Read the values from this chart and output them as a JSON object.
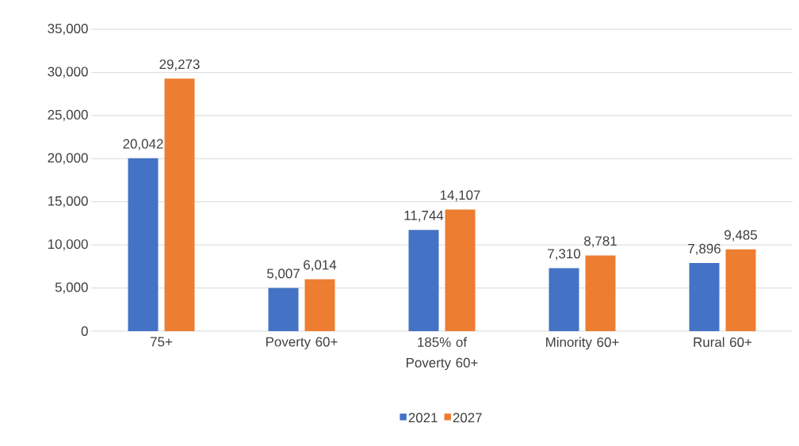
{
  "chart_data": {
    "type": "bar",
    "categories": [
      "75+",
      "Poverty 60+",
      "185% of Poverty 60+",
      "Minority 60+",
      "Rural 60+"
    ],
    "series": [
      {
        "name": "2021",
        "color": "#4472c4",
        "values": [
          20042,
          5007,
          11744,
          7310,
          7896
        ],
        "value_labels": [
          "20,042",
          "5,007",
          "11,744",
          "7,310",
          "7,896"
        ]
      },
      {
        "name": "2027",
        "color": "#ed7d31",
        "values": [
          29273,
          6014,
          14107,
          8781,
          9485
        ],
        "value_labels": [
          "29,273",
          "6,014",
          "14,107",
          "8,781",
          "9,485"
        ]
      }
    ],
    "ylim": [
      0,
      35000
    ],
    "yticks": [
      {
        "value": 0,
        "label": "0"
      },
      {
        "value": 5000,
        "label": "5,000"
      },
      {
        "value": 10000,
        "label": "10,000"
      },
      {
        "value": 15000,
        "label": "15,000"
      },
      {
        "value": 20000,
        "label": "20,000"
      },
      {
        "value": 25000,
        "label": "25,000"
      },
      {
        "value": 30000,
        "label": "30,000"
      },
      {
        "value": 35000,
        "label": "35,000"
      }
    ],
    "grid": "y",
    "legend": "bottom"
  }
}
